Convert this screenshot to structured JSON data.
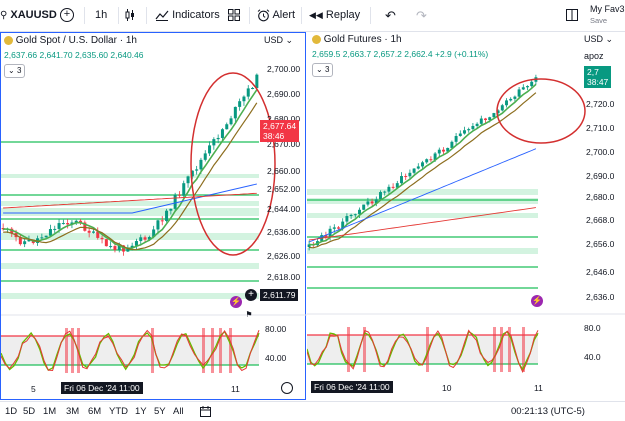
{
  "toolbar": {
    "symbol": "XAUUSD",
    "interval": "1h",
    "indicators_label": "Indicators",
    "alert_label": "Alert",
    "replay_label": "Replay",
    "layout_name": "My Fav3",
    "save_label": "Save"
  },
  "left_chart": {
    "title": "Gold Spot / U.S. Dollar · 1h",
    "ohlc": [
      "2,637.66",
      "2,641.70",
      "2,635.60",
      "2,640.46"
    ],
    "indicator_count": "3",
    "currency": "USD",
    "price_axis": [
      "2,700.00",
      "2,690.00",
      "2,680.00",
      "2,670.00",
      "2,660.00",
      "2,652.00",
      "2,644.00",
      "2,636.00",
      "2,626.00",
      "2,618.00"
    ],
    "last_price": "2,677.64",
    "countdown": "38:46",
    "crosshair_price": "2,611.79",
    "osc_axis": [
      "80.00",
      "40.00"
    ],
    "time_axis": [
      "5",
      "11"
    ],
    "crosshair_time": "Fri 06 Dec '24  11:00",
    "colors": {
      "up": "#089981",
      "down": "#f23645",
      "last_price_bg": "#f23645"
    }
  },
  "right_chart": {
    "title": "Gold Futures · 1h",
    "ohlc": [
      "2,659.5",
      "2,663.7",
      "2,657.2",
      "2,662.4",
      "+2.9 (+0.11%)"
    ],
    "indicator_count": "3",
    "currency": "USD",
    "scale_mode": "apoz",
    "price_axis": [
      "2,720.0",
      "2,710.0",
      "2,700.0",
      "2,690.0",
      "2,680.0",
      "2,668.0",
      "2,656.0",
      "2,646.0",
      "2,636.0"
    ],
    "last_price": "2,7",
    "countdown": "38:47",
    "osc_axis": [
      "80.0",
      "40.0"
    ],
    "time_axis": [
      "10",
      "11"
    ],
    "crosshair_time": "Fri 06 Dec '24  11:00",
    "colors": {
      "up": "#089981",
      "down": "#f23645",
      "last_price_bg": "#089981"
    }
  },
  "bottom": {
    "ranges": [
      "1D",
      "5D",
      "1M",
      "3M",
      "6M",
      "YTD",
      "1Y",
      "5Y",
      "All"
    ],
    "clock": "00:21:13 (UTC-5)"
  }
}
